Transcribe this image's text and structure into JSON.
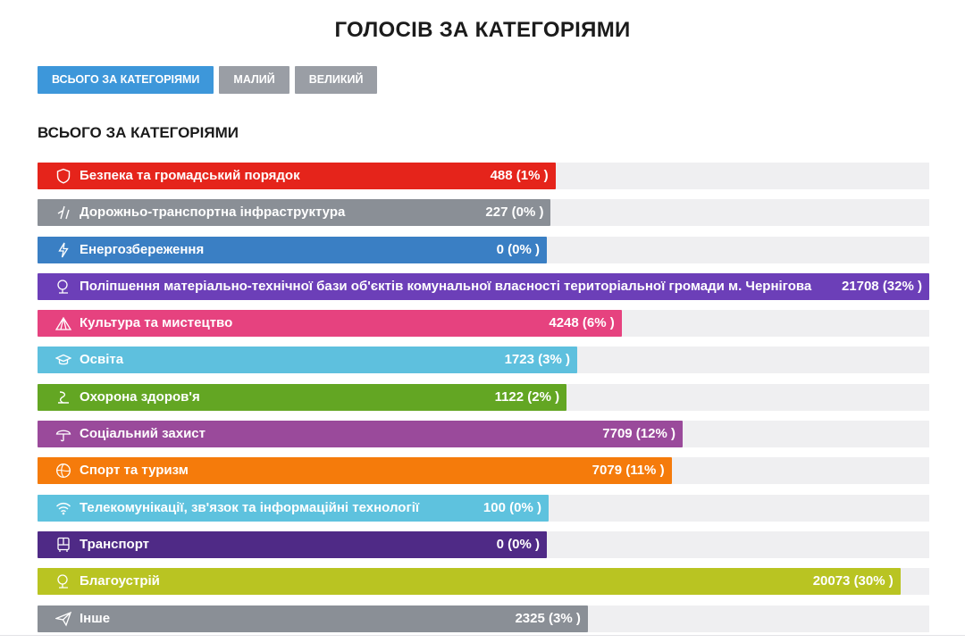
{
  "page_title": "ГОЛОСІВ ЗА КАТЕГОРІЯМИ",
  "tabs": [
    {
      "label": "ВСЬОГО ЗА КАТЕГОРІЯМИ",
      "active": true
    },
    {
      "label": "МАЛИЙ",
      "active": false
    },
    {
      "label": "ВЕЛИКИЙ",
      "active": false
    }
  ],
  "section_title": "ВСЬОГО ЗА КАТЕГОРІЯМИ",
  "chart_data": {
    "type": "bar",
    "orientation": "horizontal",
    "title": "ВСЬОГО ЗА КАТЕГОРІЯМИ",
    "bars": [
      {
        "label": "Безпека та громадський порядок",
        "value": 488,
        "value_text": "488 (1% )",
        "percent": 1,
        "color": "#e5241b",
        "icon": "shield-icon"
      },
      {
        "label": "Дорожньо-транспортна інфраструктура",
        "value": 227,
        "value_text": "227 (0% )",
        "percent": 0,
        "color": "#8a8f96",
        "icon": "road-icon"
      },
      {
        "label": "Енергозбереження",
        "value": 0,
        "value_text": "0 (0% )",
        "percent": 0,
        "color": "#3a7fc4",
        "icon": "lightning-icon"
      },
      {
        "label": "Поліпшення матеріально-технічної бази об'єктів комунальної власності територіальної громади м. Чернігова",
        "value": 21708,
        "value_text": "21708 (32% )",
        "percent": 32,
        "color": "#6c3fb8",
        "icon": "tree-icon"
      },
      {
        "label": "Культура та мистецтво",
        "value": 4248,
        "value_text": "4248 (6% )",
        "percent": 6,
        "color": "#e6427f",
        "icon": "tent-icon"
      },
      {
        "label": "Освіта",
        "value": 1723,
        "value_text": "1723 (3% )",
        "percent": 3,
        "color": "#5ec0de",
        "icon": "graduation-cap-icon"
      },
      {
        "label": "Охорона здоров'я",
        "value": 1122,
        "value_text": "1122 (2% )",
        "percent": 2,
        "color": "#63a623",
        "icon": "health-icon"
      },
      {
        "label": "Соціальний захист",
        "value": 7709,
        "value_text": "7709 (12% )",
        "percent": 12,
        "color": "#9a4a9b",
        "icon": "umbrella-icon"
      },
      {
        "label": "Спорт та туризм",
        "value": 7079,
        "value_text": "7079 (11% )",
        "percent": 11,
        "color": "#f57b0b",
        "icon": "ball-icon"
      },
      {
        "label": "Телекомунікації, зв'язок та інформаційні технології",
        "value": 100,
        "value_text": "100 (0% )",
        "percent": 0,
        "color": "#5ec2de",
        "icon": "wifi-icon"
      },
      {
        "label": "Транспорт",
        "value": 0,
        "value_text": "0 (0% )",
        "percent": 0,
        "color": "#4f2a86",
        "icon": "bus-icon"
      },
      {
        "label": "Благоустрій",
        "value": 20073,
        "value_text": "20073 (30% )",
        "percent": 30,
        "color": "#b9c422",
        "icon": "tree-icon"
      },
      {
        "label": "Інше",
        "value": 2325,
        "value_text": "2325 (3% )",
        "percent": 3,
        "color": "#8a8f96",
        "icon": "paper-plane-icon"
      }
    ]
  }
}
